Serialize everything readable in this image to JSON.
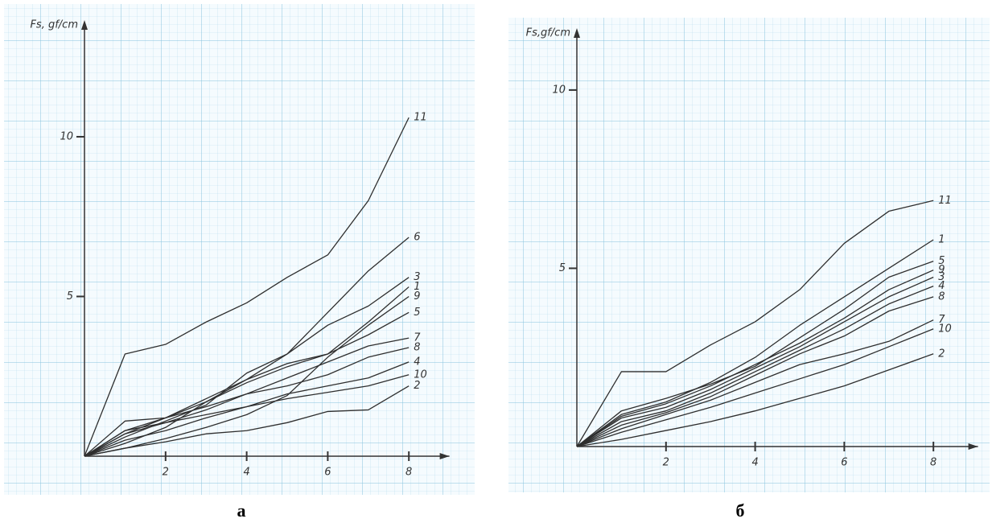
{
  "chart_data": [
    {
      "type": "line",
      "caption": "а",
      "y_label": "Fs, gf/cm",
      "x": [
        0,
        1,
        2,
        3,
        4,
        5,
        6,
        7,
        8
      ],
      "xlim": [
        0,
        9
      ],
      "ylim": [
        0,
        13.5
      ],
      "xticks": [
        2,
        4,
        6,
        8
      ],
      "yticks": [
        5,
        10
      ],
      "grid": true,
      "color": "#2e2e2e",
      "series": [
        {
          "name": "11",
          "values": [
            0,
            3.2,
            3.5,
            4.2,
            4.8,
            5.6,
            6.3,
            8.0,
            10.6
          ]
        },
        {
          "name": "6",
          "values": [
            0,
            0.6,
            1.1,
            1.6,
            2.6,
            3.2,
            4.5,
            5.8,
            6.85
          ]
        },
        {
          "name": "3",
          "values": [
            0,
            0.4,
            0.9,
            1.7,
            2.4,
            3.2,
            4.1,
            4.7,
            5.6
          ]
        },
        {
          "name": "1",
          "values": [
            0,
            0.8,
            1.2,
            1.8,
            2.4,
            2.9,
            3.2,
            4.2,
            5.3
          ]
        },
        {
          "name": "9",
          "values": [
            0,
            0.25,
            0.55,
            0.9,
            1.3,
            1.9,
            3.1,
            4.1,
            5.0
          ]
        },
        {
          "name": "5",
          "values": [
            0,
            0.7,
            1.2,
            1.7,
            2.3,
            2.8,
            3.2,
            3.8,
            4.5
          ]
        },
        {
          "name": "7",
          "values": [
            0,
            0.7,
            1.05,
            1.45,
            1.95,
            2.45,
            2.95,
            3.45,
            3.7
          ]
        },
        {
          "name": "8",
          "values": [
            0,
            1.1,
            1.2,
            1.55,
            1.95,
            2.2,
            2.55,
            3.1,
            3.4
          ]
        },
        {
          "name": "4",
          "values": [
            0,
            0.8,
            1.05,
            1.3,
            1.55,
            1.95,
            2.2,
            2.45,
            2.95
          ]
        },
        {
          "name": "10",
          "values": [
            0,
            0.5,
            0.8,
            1.2,
            1.55,
            1.8,
            2.0,
            2.2,
            2.55
          ]
        },
        {
          "name": "2",
          "values": [
            0,
            0.25,
            0.45,
            0.7,
            0.8,
            1.05,
            1.4,
            1.45,
            2.2
          ]
        }
      ]
    },
    {
      "type": "line",
      "caption": "б",
      "y_label": "Fs,gf/cm",
      "x": [
        0,
        1,
        2,
        3,
        4,
        5,
        6,
        7,
        8
      ],
      "xlim": [
        0,
        9
      ],
      "ylim": [
        0,
        11.6
      ],
      "xticks": [
        2,
        4,
        6,
        8
      ],
      "yticks": [
        5,
        10
      ],
      "grid": true,
      "color": "#2e2e2e",
      "series": [
        {
          "name": "11",
          "values": [
            0,
            2.1,
            2.1,
            2.85,
            3.5,
            4.4,
            5.7,
            6.6,
            6.9
          ]
        },
        {
          "name": "1",
          "values": [
            0,
            0.9,
            1.25,
            1.8,
            2.5,
            3.4,
            4.2,
            5.0,
            5.8
          ]
        },
        {
          "name": "5",
          "values": [
            0,
            1.0,
            1.35,
            1.75,
            2.25,
            3.05,
            3.85,
            4.75,
            5.2
          ]
        },
        {
          "name": "9",
          "values": [
            0,
            0.85,
            1.2,
            1.7,
            2.3,
            2.9,
            3.6,
            4.4,
            4.95
          ]
        },
        {
          "name": "3",
          "values": [
            0,
            0.8,
            1.1,
            1.6,
            2.2,
            2.8,
            3.5,
            4.2,
            4.75
          ]
        },
        {
          "name": "4",
          "values": [
            0,
            0.7,
            1.0,
            1.5,
            2.1,
            2.7,
            3.3,
            4.0,
            4.5
          ]
        },
        {
          "name": "8",
          "values": [
            0,
            0.6,
            0.95,
            1.4,
            2.0,
            2.6,
            3.1,
            3.8,
            4.2
          ]
        },
        {
          "name": "7",
          "values": [
            0,
            0.5,
            0.9,
            1.3,
            1.8,
            2.3,
            2.6,
            2.95,
            3.55
          ]
        },
        {
          "name": "10",
          "values": [
            0,
            0.4,
            0.75,
            1.1,
            1.5,
            1.9,
            2.3,
            2.8,
            3.3
          ]
        },
        {
          "name": "2",
          "values": [
            0,
            0.2,
            0.45,
            0.7,
            1.0,
            1.35,
            1.7,
            2.15,
            2.6
          ]
        }
      ]
    }
  ]
}
